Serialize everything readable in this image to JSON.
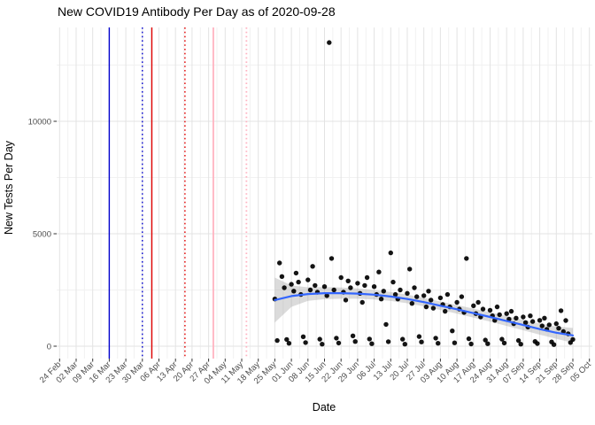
{
  "title": "New COVID19 Antibody Per Day as of 2020-09-28",
  "axes": {
    "x_label": "Date",
    "y_label": "New Tests Per Day"
  },
  "chart_data": {
    "type": "scatter",
    "title": "New COVID19 Antibody Per Day as of 2020-09-28",
    "xlabel": "Date",
    "ylabel": "New Tests Per Day",
    "x_start_date": "2020-02-24",
    "x_tick_labels": [
      "24 Feb",
      "02 Mar",
      "09 Mar",
      "16 Mar",
      "23 Mar",
      "30 Mar",
      "06 Apr",
      "13 Apr",
      "20 Apr",
      "27 Apr",
      "04 May",
      "11 May",
      "18 May",
      "25 May",
      "01 Jun",
      "08 Jun",
      "15 Jun",
      "22 Jun",
      "29 Jun",
      "06 Jul",
      "13 Jul",
      "20 Jul",
      "27 Jul",
      "03 Aug",
      "10 Aug",
      "17 Aug",
      "24 Aug",
      "31 Aug",
      "07 Sep",
      "14 Sep",
      "21 Sep",
      "28 Sep",
      "05 Oct"
    ],
    "y_ticks": [
      0,
      5000,
      10000
    ],
    "y_minor_ticks": [
      2500,
      7500,
      12500
    ],
    "ylim": [
      0,
      13500
    ],
    "grid": true,
    "legend": "none",
    "colors": {
      "point": "#000000",
      "smooth_line": "#3366FF",
      "ribbon": "#999999",
      "grid_major": "#e3e3e3",
      "grid_minor": "#f1f1f1",
      "tick_text": "#4d4d4d",
      "event_blue": "#0000CD",
      "event_red": "#E00000",
      "event_pink": "#FFB3C1"
    },
    "event_lines": [
      {
        "date": "2020-03-16",
        "color": "#0000CD",
        "linetype": "solid"
      },
      {
        "date": "2020-03-30",
        "color": "#0000CD",
        "linetype": "dotted"
      },
      {
        "date": "2020-04-03",
        "color": "#E00000",
        "linetype": "solid"
      },
      {
        "date": "2020-04-17",
        "color": "#E00000",
        "linetype": "dotted"
      },
      {
        "date": "2020-04-29",
        "color": "#FFB3C1",
        "linetype": "solid"
      },
      {
        "date": "2020-05-13",
        "color": "#FFB3C1",
        "linetype": "dotted"
      }
    ],
    "smooth": [
      [
        "2020-05-25",
        2050,
        1050,
        3050
      ],
      [
        "2020-06-01",
        2230,
        1750,
        2700
      ],
      [
        "2020-06-08",
        2320,
        2020,
        2620
      ],
      [
        "2020-06-15",
        2360,
        2090,
        2630
      ],
      [
        "2020-06-22",
        2360,
        2110,
        2610
      ],
      [
        "2020-06-29",
        2340,
        2110,
        2570
      ],
      [
        "2020-07-06",
        2290,
        2080,
        2500
      ],
      [
        "2020-07-13",
        2210,
        2010,
        2410
      ],
      [
        "2020-07-20",
        2100,
        1910,
        2290
      ],
      [
        "2020-07-27",
        1960,
        1770,
        2150
      ],
      [
        "2020-08-03",
        1800,
        1610,
        1990
      ],
      [
        "2020-08-10",
        1640,
        1450,
        1830
      ],
      [
        "2020-08-17",
        1470,
        1270,
        1670
      ],
      [
        "2020-08-24",
        1300,
        1090,
        1510
      ],
      [
        "2020-08-31",
        1120,
        900,
        1340
      ],
      [
        "2020-09-07",
        940,
        710,
        1170
      ],
      [
        "2020-09-14",
        760,
        510,
        1010
      ],
      [
        "2020-09-21",
        600,
        330,
        870
      ],
      [
        "2020-09-28",
        480,
        150,
        810
      ]
    ],
    "points": [
      [
        "2020-05-25",
        2100
      ],
      [
        "2020-05-26",
        250
      ],
      [
        "2020-05-27",
        3700
      ],
      [
        "2020-05-28",
        3100
      ],
      [
        "2020-05-29",
        2600
      ],
      [
        "2020-05-30",
        300
      ],
      [
        "2020-05-31",
        130
      ],
      [
        "2020-06-01",
        2750
      ],
      [
        "2020-06-02",
        2450
      ],
      [
        "2020-06-03",
        3250
      ],
      [
        "2020-06-04",
        2850
      ],
      [
        "2020-06-05",
        2300
      ],
      [
        "2020-06-06",
        420
      ],
      [
        "2020-06-07",
        160
      ],
      [
        "2020-06-08",
        2950
      ],
      [
        "2020-06-09",
        2500
      ],
      [
        "2020-06-10",
        3550
      ],
      [
        "2020-06-11",
        2700
      ],
      [
        "2020-06-12",
        2400
      ],
      [
        "2020-06-13",
        310
      ],
      [
        "2020-06-14",
        90
      ],
      [
        "2020-06-15",
        2650
      ],
      [
        "2020-06-16",
        2250
      ],
      [
        "2020-06-17",
        13500
      ],
      [
        "2020-06-18",
        3900
      ],
      [
        "2020-06-19",
        2500
      ],
      [
        "2020-06-20",
        360
      ],
      [
        "2020-06-21",
        140
      ],
      [
        "2020-06-22",
        3050
      ],
      [
        "2020-06-23",
        2400
      ],
      [
        "2020-06-24",
        2050
      ],
      [
        "2020-06-25",
        2900
      ],
      [
        "2020-06-26",
        2600
      ],
      [
        "2020-06-27",
        460
      ],
      [
        "2020-06-28",
        210
      ],
      [
        "2020-06-29",
        2800
      ],
      [
        "2020-06-30",
        2350
      ],
      [
        "2020-07-01",
        1950
      ],
      [
        "2020-07-02",
        2700
      ],
      [
        "2020-07-03",
        3050
      ],
      [
        "2020-07-04",
        320
      ],
      [
        "2020-07-05",
        110
      ],
      [
        "2020-07-06",
        2650
      ],
      [
        "2020-07-07",
        2300
      ],
      [
        "2020-07-08",
        3300
      ],
      [
        "2020-07-09",
        2100
      ],
      [
        "2020-07-10",
        2450
      ],
      [
        "2020-07-11",
        970
      ],
      [
        "2020-07-12",
        200
      ],
      [
        "2020-07-13",
        4150
      ],
      [
        "2020-07-14",
        2850
      ],
      [
        "2020-07-15",
        2300
      ],
      [
        "2020-07-16",
        2100
      ],
      [
        "2020-07-17",
        2500
      ],
      [
        "2020-07-18",
        310
      ],
      [
        "2020-07-19",
        90
      ],
      [
        "2020-07-20",
        2350
      ],
      [
        "2020-07-21",
        3430
      ],
      [
        "2020-07-22",
        1900
      ],
      [
        "2020-07-23",
        2600
      ],
      [
        "2020-07-24",
        2200
      ],
      [
        "2020-07-25",
        430
      ],
      [
        "2020-07-26",
        190
      ],
      [
        "2020-07-27",
        2250
      ],
      [
        "2020-07-28",
        1750
      ],
      [
        "2020-07-29",
        2450
      ],
      [
        "2020-07-30",
        2050
      ],
      [
        "2020-07-31",
        1690
      ],
      [
        "2020-08-01",
        360
      ],
      [
        "2020-08-02",
        130
      ],
      [
        "2020-08-03",
        2150
      ],
      [
        "2020-08-04",
        1850
      ],
      [
        "2020-08-05",
        1550
      ],
      [
        "2020-08-06",
        2300
      ],
      [
        "2020-08-07",
        1750
      ],
      [
        "2020-08-08",
        680
      ],
      [
        "2020-08-09",
        150
      ],
      [
        "2020-08-10",
        1950
      ],
      [
        "2020-08-11",
        1650
      ],
      [
        "2020-08-12",
        2200
      ],
      [
        "2020-08-13",
        1500
      ],
      [
        "2020-08-14",
        3900
      ],
      [
        "2020-08-15",
        330
      ],
      [
        "2020-08-16",
        100
      ],
      [
        "2020-08-17",
        1800
      ],
      [
        "2020-08-18",
        1450
      ],
      [
        "2020-08-19",
        1950
      ],
      [
        "2020-08-20",
        1300
      ],
      [
        "2020-08-21",
        1650
      ],
      [
        "2020-08-22",
        270
      ],
      [
        "2020-08-23",
        110
      ],
      [
        "2020-08-24",
        1600
      ],
      [
        "2020-08-25",
        1350
      ],
      [
        "2020-08-26",
        1150
      ],
      [
        "2020-08-27",
        1750
      ],
      [
        "2020-08-28",
        1400
      ],
      [
        "2020-08-29",
        310
      ],
      [
        "2020-08-30",
        140
      ],
      [
        "2020-08-31",
        1450
      ],
      [
        "2020-09-01",
        1200
      ],
      [
        "2020-09-02",
        1550
      ],
      [
        "2020-09-03",
        1000
      ],
      [
        "2020-09-04",
        1250
      ],
      [
        "2020-09-05",
        250
      ],
      [
        "2020-09-06",
        90
      ],
      [
        "2020-09-07",
        1300
      ],
      [
        "2020-09-08",
        1050
      ],
      [
        "2020-09-09",
        850
      ],
      [
        "2020-09-10",
        1350
      ],
      [
        "2020-09-11",
        1100
      ],
      [
        "2020-09-12",
        210
      ],
      [
        "2020-09-13",
        120
      ],
      [
        "2020-09-14",
        1150
      ],
      [
        "2020-09-15",
        900
      ],
      [
        "2020-09-16",
        1250
      ],
      [
        "2020-09-17",
        750
      ],
      [
        "2020-09-18",
        950
      ],
      [
        "2020-09-19",
        190
      ],
      [
        "2020-09-20",
        70
      ],
      [
        "2020-09-21",
        1000
      ],
      [
        "2020-09-22",
        800
      ],
      [
        "2020-09-23",
        1580
      ],
      [
        "2020-09-24",
        650
      ],
      [
        "2020-09-25",
        1140
      ],
      [
        "2020-09-26",
        550
      ],
      [
        "2020-09-27",
        160
      ],
      [
        "2020-09-28",
        300
      ]
    ]
  }
}
